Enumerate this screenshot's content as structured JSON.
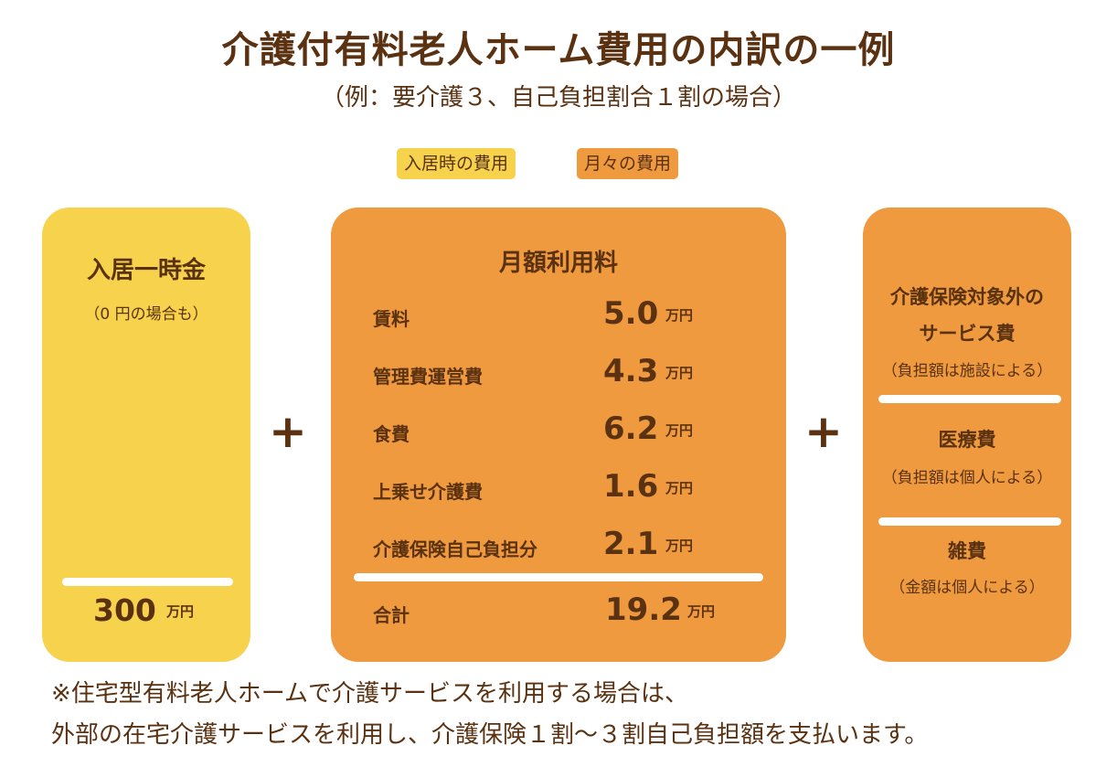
{
  "title": "介護付有料老人ホーム費用の内訳の一例",
  "subtitle": "（例：要介護３、自己負担割合１割の場合）",
  "legend": {
    "initial": "入居時の費用",
    "monthly": "月々の費用"
  },
  "colors": {
    "yellow": "#f7d24c",
    "orange": "#ef9a3f",
    "text": "#5a3211"
  },
  "plus_symbol": "+",
  "entry_fee": {
    "heading": "入居一時金",
    "note": "（0 円の場合も）",
    "amount": "300",
    "unit": "万円"
  },
  "monthly_fee": {
    "heading": "月額利用料",
    "items": [
      {
        "label": "賃料",
        "value": "5.0",
        "unit": "万円"
      },
      {
        "label": "管理費運営費",
        "value": "4.3",
        "unit": "万円"
      },
      {
        "label": "食費",
        "value": "6.2",
        "unit": "万円"
      },
      {
        "label": "上乗せ介護費",
        "value": "1.6",
        "unit": "万円"
      },
      {
        "label": "介護保険自己負担分",
        "value": "2.1",
        "unit": "万円"
      }
    ],
    "total": {
      "label": "合計",
      "value": "19.2",
      "unit": "万円"
    }
  },
  "other_fees": [
    {
      "title_line1": "介護保険対象外の",
      "title_line2": "サービス費",
      "note": "（負担額は施設による）"
    },
    {
      "title_line1": "医療費",
      "note": "（負担額は個人による）"
    },
    {
      "title_line1": "雑費",
      "note": "（金額は個人による）"
    }
  ],
  "footnote": {
    "line1": "※住宅型有料老人ホームで介護サービスを利用する場合は、",
    "line2": "外部の在宅介護サービスを利用し、介護保険１割～３割自己負担額を支払います。"
  }
}
